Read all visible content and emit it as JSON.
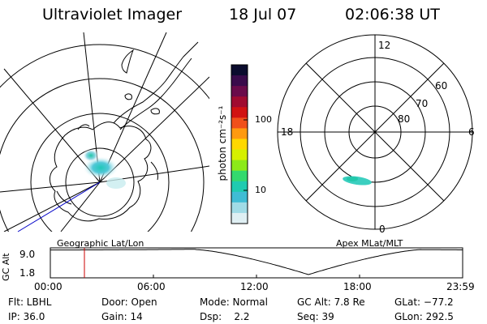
{
  "header": {
    "instrument": "Ultraviolet Imager",
    "date": "18 Jul 07",
    "time": "02:06:38 UT"
  },
  "colorbar": {
    "unit_label": "photon cm⁻²s⁻¹",
    "ticks": [
      "100",
      "10"
    ],
    "colors": [
      "#0b0c2e",
      "#3a0b4b",
      "#6a0b4a",
      "#a00b30",
      "#d11212",
      "#f0501a",
      "#ff9a10",
      "#ffd800",
      "#d6f000",
      "#8cea19",
      "#33d96e",
      "#1fcbb0",
      "#40bcd4",
      "#a0dbe6",
      "#dfeff3"
    ]
  },
  "geo_map": {
    "label": "Geographic Lat/Lon"
  },
  "polar_plot": {
    "label": "Apex MLat/MLT",
    "mlt_labels": {
      "top": "12",
      "left": "18",
      "right": "6",
      "bottom": "0"
    },
    "lat_labels": [
      "60",
      "70",
      "80"
    ]
  },
  "orbit": {
    "ylabel": "GC Alt",
    "yticks": [
      "9.0",
      "1.8"
    ],
    "xticks": [
      "00:00",
      "06:00",
      "12:00",
      "18:00",
      "23:59"
    ],
    "marker_color": "#cc0000"
  },
  "info": {
    "flt": "Flt: LBHL",
    "ip": "IP: 36.0",
    "door": "Door: Open",
    "gain": "Gain: 14",
    "mode": "Mode: Normal",
    "dsp": "Dsp:    2.2",
    "gc_alt": "GC Alt: 7.8 Re",
    "seq": "Seq: 39",
    "glat": "GLat: −77.2",
    "glon": "GLon: 292.5"
  }
}
